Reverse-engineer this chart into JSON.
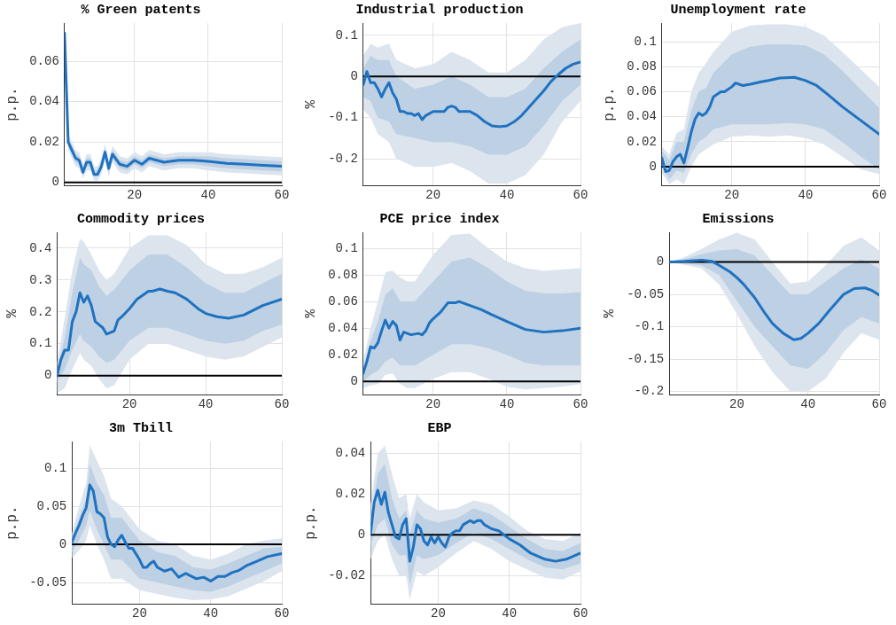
{
  "chart_data": [
    {
      "type": "line",
      "title": "% Green patents",
      "ylabel": "p.p.",
      "xlim": [
        1,
        60
      ],
      "xticks": [
        20,
        40,
        60
      ],
      "ylim": [
        -0.0015,
        0.079
      ],
      "yticks": [
        0,
        0.02,
        0.04,
        0.06
      ],
      "grid": true,
      "ref_lines": [
        {
          "axis": "y",
          "value": 0,
          "color": "#000000"
        }
      ],
      "series": [
        {
          "color": "#1f72c0",
          "x": [
            1,
            2,
            3,
            4,
            5,
            6,
            7,
            8,
            9,
            10,
            11,
            12,
            13,
            14,
            16,
            18,
            20,
            22,
            24,
            28,
            32,
            36,
            40,
            45,
            50,
            55,
            60
          ],
          "values": [
            0.074,
            0.02,
            0.016,
            0.012,
            0.011,
            0.005,
            0.01,
            0.01,
            0.004,
            0.004,
            0.008,
            0.015,
            0.007,
            0.014,
            0.009,
            0.008,
            0.011,
            0.009,
            0.012,
            0.01,
            0.011,
            0.011,
            0.0105,
            0.0095,
            0.009,
            0.0085,
            0.008
          ]
        },
        {
          "color": "#bdd0e4",
          "x": [
            1,
            2,
            3,
            4,
            5,
            6,
            7,
            8,
            9,
            10,
            11,
            12,
            13,
            14,
            16,
            18,
            20,
            22,
            24,
            28,
            32,
            36,
            40,
            45,
            50,
            55,
            60
          ],
          "values": [
            null,
            null,
            null,
            null,
            null,
            null,
            null,
            null,
            null,
            null,
            null,
            null,
            null,
            null,
            null,
            null,
            null,
            null,
            null,
            null,
            null,
            null,
            null,
            null,
            null,
            null,
            null
          ],
          "lower": [
            0.073,
            0.018,
            0.014,
            0.01,
            0.009,
            0.004,
            0.008,
            0.008,
            0.003,
            0.003,
            0.006,
            0.013,
            0.005,
            0.012,
            0.007,
            0.006,
            0.009,
            0.007,
            0.01,
            0.008,
            0.009,
            0.009,
            0.008,
            0.007,
            0.0065,
            0.006,
            0.0055
          ],
          "upper": [
            0.075,
            0.022,
            0.018,
            0.014,
            0.013,
            0.007,
            0.012,
            0.012,
            0.006,
            0.006,
            0.01,
            0.017,
            0.009,
            0.016,
            0.011,
            0.01,
            0.013,
            0.011,
            0.014,
            0.012,
            0.013,
            0.013,
            0.013,
            0.012,
            0.0115,
            0.011,
            0.0105
          ]
        },
        {
          "color": "#dce4ee",
          "x": [
            1,
            2,
            3,
            4,
            5,
            6,
            7,
            8,
            9,
            10,
            11,
            12,
            13,
            14,
            16,
            18,
            20,
            22,
            24,
            28,
            32,
            36,
            40,
            45,
            50,
            55,
            60
          ],
          "values": [
            null,
            null,
            null,
            null,
            null,
            null,
            null,
            null,
            null,
            null,
            null,
            null,
            null,
            null,
            null,
            null,
            null,
            null,
            null,
            null,
            null,
            null,
            null,
            null,
            null,
            null,
            null
          ],
          "lower": [
            0.072,
            0.016,
            0.012,
            0.008,
            0.007,
            0.002,
            0.006,
            0.006,
            0.001,
            0.001,
            0.004,
            0.011,
            0.003,
            0.01,
            0.005,
            0.004,
            0.007,
            0.005,
            0.008,
            0.006,
            0.007,
            0.007,
            0.006,
            0.005,
            0.0045,
            0.004,
            0.0035
          ],
          "upper": [
            0.076,
            0.024,
            0.02,
            0.016,
            0.015,
            0.009,
            0.014,
            0.014,
            0.008,
            0.008,
            0.012,
            0.019,
            0.011,
            0.018,
            0.013,
            0.012,
            0.015,
            0.013,
            0.016,
            0.014,
            0.015,
            0.015,
            0.015,
            0.014,
            0.0135,
            0.013,
            0.0125
          ]
        }
      ]
    },
    {
      "type": "line",
      "title": "Industrial production",
      "ylabel": "%",
      "xlim": [
        1,
        60
      ],
      "xticks": [
        20,
        40,
        60
      ],
      "ylim": [
        -0.265,
        0.13
      ],
      "yticks": [
        -0.2,
        -0.1,
        0,
        0.1
      ],
      "grid": true,
      "ref_lines": [
        {
          "axis": "y",
          "value": 0,
          "color": "#000000"
        }
      ],
      "series": [
        {
          "color": "#1f72c0",
          "x": [
            1,
            2,
            3,
            4,
            5,
            6,
            7,
            8,
            9,
            10,
            11,
            12,
            13,
            14,
            15,
            16,
            17,
            18,
            20,
            22,
            23,
            24,
            25,
            26,
            27,
            30,
            32,
            34,
            36,
            38,
            40,
            42,
            44,
            46,
            48,
            50,
            52,
            54,
            56,
            58,
            60
          ],
          "values": [
            -0.02,
            0.012,
            -0.015,
            -0.015,
            -0.03,
            -0.05,
            -0.03,
            -0.015,
            -0.04,
            -0.055,
            -0.085,
            -0.085,
            -0.09,
            -0.09,
            -0.095,
            -0.09,
            -0.105,
            -0.095,
            -0.085,
            -0.085,
            -0.085,
            -0.075,
            -0.072,
            -0.075,
            -0.085,
            -0.085,
            -0.095,
            -0.11,
            -0.12,
            -0.122,
            -0.12,
            -0.11,
            -0.095,
            -0.075,
            -0.055,
            -0.035,
            -0.012,
            0.005,
            0.02,
            0.03,
            0.035
          ]
        },
        {
          "color": "#bdd0e4",
          "x": [
            1,
            3,
            5,
            8,
            10,
            15,
            20,
            25,
            30,
            35,
            40,
            45,
            50,
            55,
            60
          ],
          "values": [
            null,
            null,
            null,
            null,
            null,
            null,
            null,
            null,
            null,
            null,
            null,
            null,
            null,
            null,
            null
          ],
          "lower": [
            -0.05,
            -0.06,
            -0.1,
            -0.11,
            -0.14,
            -0.15,
            -0.16,
            -0.16,
            -0.17,
            -0.19,
            -0.19,
            -0.17,
            -0.12,
            -0.06,
            -0.02
          ],
          "upper": [
            0.02,
            0.05,
            0.04,
            0.04,
            0.0,
            -0.03,
            -0.02,
            0.0,
            -0.02,
            -0.05,
            -0.05,
            -0.03,
            0.02,
            0.06,
            0.09
          ]
        },
        {
          "color": "#dce4ee",
          "x": [
            1,
            3,
            5,
            8,
            10,
            15,
            20,
            25,
            30,
            35,
            40,
            45,
            50,
            55,
            60
          ],
          "values": [
            null,
            null,
            null,
            null,
            null,
            null,
            null,
            null,
            null,
            null,
            null,
            null,
            null,
            null,
            null
          ],
          "lower": [
            -0.08,
            -0.1,
            -0.14,
            -0.16,
            -0.2,
            -0.22,
            -0.22,
            -0.21,
            -0.23,
            -0.26,
            -0.26,
            -0.24,
            -0.19,
            -0.11,
            -0.06
          ],
          "upper": [
            0.05,
            0.08,
            0.07,
            0.08,
            0.04,
            0.02,
            0.03,
            0.06,
            0.04,
            0.01,
            0.01,
            0.04,
            0.09,
            0.12,
            0.13
          ]
        }
      ]
    },
    {
      "type": "line",
      "title": "Unemployment rate",
      "ylabel": "p.p.",
      "xlim": [
        1,
        60
      ],
      "xticks": [
        20,
        40,
        60
      ],
      "ylim": [
        -0.015,
        0.115
      ],
      "yticks": [
        0,
        0.02,
        0.04,
        0.06,
        0.08,
        0.1
      ],
      "grid": true,
      "ref_lines": [
        {
          "axis": "y",
          "value": 0,
          "color": "#000000"
        }
      ],
      "series": [
        {
          "color": "#1f72c0",
          "x": [
            1,
            2,
            3,
            4,
            5,
            6,
            7,
            8,
            9,
            10,
            11,
            12,
            13,
            14,
            15,
            17,
            18,
            20,
            21,
            23,
            25,
            28,
            30,
            33,
            37,
            40,
            43,
            46,
            50,
            55,
            60
          ],
          "values": [
            0.007,
            -0.004,
            -0.003,
            0.004,
            0.008,
            0.01,
            0.003,
            0.015,
            0.028,
            0.038,
            0.043,
            0.041,
            0.043,
            0.048,
            0.056,
            0.06,
            0.06,
            0.064,
            0.067,
            0.065,
            0.066,
            0.068,
            0.069,
            0.071,
            0.0715,
            0.069,
            0.065,
            0.058,
            0.048,
            0.037,
            0.026
          ]
        },
        {
          "color": "#bdd0e4",
          "x": [
            1,
            3,
            5,
            7,
            9,
            11,
            13,
            15,
            20,
            25,
            30,
            35,
            40,
            45,
            50,
            55,
            60
          ],
          "values": [
            null,
            null,
            null,
            null,
            null,
            null,
            null,
            null,
            null,
            null,
            null,
            null,
            null,
            null,
            null,
            null,
            null
          ],
          "lower": [
            0.0,
            -0.01,
            -0.003,
            -0.005,
            0.01,
            0.02,
            0.024,
            0.03,
            0.034,
            0.034,
            0.034,
            0.035,
            0.034,
            0.03,
            0.02,
            0.008,
            -0.002
          ],
          "upper": [
            0.013,
            0.005,
            0.02,
            0.02,
            0.045,
            0.06,
            0.063,
            0.075,
            0.09,
            0.096,
            0.098,
            0.098,
            0.097,
            0.09,
            0.077,
            0.062,
            0.047
          ]
        },
        {
          "color": "#dce4ee",
          "x": [
            1,
            3,
            5,
            7,
            9,
            11,
            13,
            15,
            20,
            25,
            30,
            35,
            40,
            45,
            50,
            55,
            60
          ],
          "values": [
            null,
            null,
            null,
            null,
            null,
            null,
            null,
            null,
            null,
            null,
            null,
            null,
            null,
            null,
            null,
            null,
            null
          ],
          "lower": [
            -0.005,
            -0.014,
            -0.01,
            -0.014,
            0.0,
            0.01,
            0.014,
            0.018,
            0.024,
            0.025,
            0.024,
            0.025,
            0.023,
            0.018,
            0.008,
            -0.002,
            -0.006
          ],
          "upper": [
            0.016,
            0.01,
            0.027,
            0.03,
            0.06,
            0.075,
            0.083,
            0.092,
            0.108,
            0.113,
            0.114,
            0.114,
            0.112,
            0.105,
            0.092,
            0.078,
            0.064
          ]
        }
      ]
    },
    {
      "type": "line",
      "title": "Commodity prices",
      "ylabel": "%",
      "xlim": [
        1,
        60
      ],
      "xticks": [
        20,
        40,
        60
      ],
      "ylim": [
        -0.06,
        0.45
      ],
      "yticks": [
        0,
        0.1,
        0.2,
        0.3,
        0.4
      ],
      "grid": true,
      "ref_lines": [
        {
          "axis": "y",
          "value": 0,
          "color": "#000000"
        }
      ],
      "series": [
        {
          "color": "#1f72c0",
          "x": [
            1,
            2,
            3,
            4,
            5,
            6,
            7,
            8,
            9,
            10,
            11,
            12,
            13,
            14,
            15,
            16,
            17,
            18,
            20,
            22,
            25,
            26,
            28,
            30,
            32,
            35,
            38,
            40,
            43,
            46,
            50,
            55,
            60
          ],
          "values": [
            0.0,
            0.05,
            0.08,
            0.08,
            0.17,
            0.2,
            0.26,
            0.23,
            0.25,
            0.22,
            0.17,
            0.16,
            0.15,
            0.13,
            0.135,
            0.14,
            0.175,
            0.185,
            0.21,
            0.24,
            0.265,
            0.265,
            0.272,
            0.265,
            0.26,
            0.24,
            0.21,
            0.195,
            0.185,
            0.18,
            0.19,
            0.22,
            0.24
          ]
        },
        {
          "color": "#bdd0e4",
          "x": [
            1,
            3,
            5,
            7,
            8,
            10,
            12,
            14,
            16,
            20,
            25,
            30,
            35,
            40,
            45,
            50,
            55,
            60
          ],
          "values": [
            null,
            null,
            null,
            null,
            null,
            null,
            null,
            null,
            null,
            null,
            null,
            null,
            null,
            null,
            null,
            null,
            null,
            null
          ],
          "lower": [
            -0.02,
            0.02,
            0.08,
            0.13,
            0.11,
            0.09,
            0.06,
            0.04,
            0.05,
            0.11,
            0.15,
            0.15,
            0.13,
            0.11,
            0.1,
            0.11,
            0.14,
            0.16
          ],
          "upper": [
            0.02,
            0.12,
            0.26,
            0.37,
            0.35,
            0.33,
            0.28,
            0.25,
            0.27,
            0.33,
            0.38,
            0.38,
            0.34,
            0.29,
            0.26,
            0.26,
            0.29,
            0.32
          ]
        },
        {
          "color": "#dce4ee",
          "x": [
            1,
            3,
            5,
            7,
            8,
            10,
            12,
            14,
            16,
            20,
            25,
            30,
            35,
            40,
            45,
            50,
            55,
            60
          ],
          "values": [
            null,
            null,
            null,
            null,
            null,
            null,
            null,
            null,
            null,
            null,
            null,
            null,
            null,
            null,
            null,
            null,
            null,
            null
          ],
          "lower": [
            -0.055,
            -0.04,
            0.02,
            0.07,
            0.05,
            0.03,
            -0.01,
            -0.04,
            -0.03,
            0.05,
            0.1,
            0.1,
            0.08,
            0.06,
            0.05,
            0.06,
            0.09,
            0.12
          ],
          "upper": [
            0.04,
            0.18,
            0.33,
            0.43,
            0.42,
            0.38,
            0.33,
            0.3,
            0.32,
            0.4,
            0.44,
            0.44,
            0.41,
            0.35,
            0.32,
            0.32,
            0.34,
            0.37
          ]
        }
      ]
    },
    {
      "type": "line",
      "title": "PCE price index",
      "ylabel": "%",
      "xlim": [
        1,
        60
      ],
      "xticks": [
        20,
        40,
        60
      ],
      "ylim": [
        -0.01,
        0.112
      ],
      "yticks": [
        0,
        0.02,
        0.04,
        0.06,
        0.08,
        0.1
      ],
      "grid": true,
      "ref_lines": [
        {
          "axis": "y",
          "value": 0,
          "color": "#000000"
        }
      ],
      "series": [
        {
          "color": "#1f72c0",
          "x": [
            1,
            2,
            3,
            4,
            5,
            6,
            7,
            8,
            9,
            10,
            11,
            12,
            14,
            16,
            17,
            18,
            19,
            20,
            22,
            24,
            26,
            27,
            30,
            33,
            36,
            40,
            45,
            50,
            55,
            60
          ],
          "values": [
            0.006,
            0.015,
            0.026,
            0.025,
            0.029,
            0.038,
            0.046,
            0.04,
            0.045,
            0.042,
            0.031,
            0.037,
            0.035,
            0.036,
            0.035,
            0.038,
            0.044,
            0.047,
            0.052,
            0.059,
            0.059,
            0.06,
            0.057,
            0.054,
            0.05,
            0.045,
            0.039,
            0.037,
            0.038,
            0.04
          ]
        },
        {
          "color": "#bdd0e4",
          "x": [
            1,
            3,
            5,
            7,
            9,
            11,
            13,
            15,
            20,
            25,
            30,
            35,
            40,
            45,
            50,
            55,
            60
          ],
          "values": [
            null,
            null,
            null,
            null,
            null,
            null,
            null,
            null,
            null,
            null,
            null,
            null,
            null,
            null,
            null,
            null,
            null
          ],
          "lower": [
            0.0,
            0.005,
            0.008,
            0.015,
            0.018,
            0.012,
            0.012,
            0.012,
            0.02,
            0.028,
            0.028,
            0.025,
            0.02,
            0.014,
            0.012,
            0.012,
            0.012
          ],
          "upper": [
            0.01,
            0.03,
            0.045,
            0.065,
            0.07,
            0.06,
            0.06,
            0.06,
            0.075,
            0.09,
            0.093,
            0.085,
            0.075,
            0.068,
            0.066,
            0.066,
            0.067
          ]
        },
        {
          "color": "#dce4ee",
          "x": [
            1,
            3,
            5,
            7,
            9,
            11,
            13,
            15,
            20,
            25,
            30,
            35,
            40,
            45,
            50,
            55,
            60
          ],
          "values": [
            null,
            null,
            null,
            null,
            null,
            null,
            null,
            null,
            null,
            null,
            null,
            null,
            null,
            null,
            null,
            null,
            null
          ],
          "lower": [
            -0.005,
            -0.003,
            -0.002,
            0.005,
            0.006,
            -0.002,
            -0.005,
            -0.005,
            0.002,
            0.007,
            0.007,
            0.002,
            -0.004,
            -0.006,
            -0.005,
            -0.004,
            -0.002
          ],
          "upper": [
            0.015,
            0.04,
            0.06,
            0.082,
            0.083,
            0.078,
            0.075,
            0.075,
            0.095,
            0.11,
            0.111,
            0.1,
            0.09,
            0.085,
            0.083,
            0.084,
            0.085
          ]
        }
      ]
    },
    {
      "type": "line",
      "title": "Emissions",
      "ylabel": "%",
      "xlim": [
        1,
        60
      ],
      "xticks": [
        20,
        40,
        60
      ],
      "ylim": [
        -0.205,
        0.046
      ],
      "yticks": [
        -0.2,
        -0.15,
        -0.1,
        -0.05,
        0
      ],
      "grid": true,
      "ref_lines": [
        {
          "axis": "y",
          "value": 0,
          "color": "#000000"
        }
      ],
      "series": [
        {
          "color": "#1f72c0",
          "x": [
            1,
            5,
            10,
            13,
            15,
            18,
            20,
            22,
            25,
            28,
            30,
            33,
            36,
            38,
            40,
            43,
            46,
            50,
            53,
            56,
            58,
            60
          ],
          "values": [
            0,
            0.001,
            0.003,
            0.001,
            -0.005,
            -0.015,
            -0.024,
            -0.035,
            -0.055,
            -0.08,
            -0.095,
            -0.11,
            -0.12,
            -0.118,
            -0.11,
            -0.095,
            -0.075,
            -0.05,
            -0.041,
            -0.04,
            -0.044,
            -0.051
          ]
        },
        {
          "color": "#bdd0e4",
          "x": [
            1,
            5,
            10,
            15,
            20,
            25,
            30,
            35,
            40,
            45,
            50,
            55,
            60
          ],
          "values": [
            null,
            null,
            null,
            null,
            null,
            null,
            null,
            null,
            null,
            null,
            null,
            null,
            null
          ],
          "lower": [
            0,
            -0.002,
            -0.005,
            -0.02,
            -0.06,
            -0.1,
            -0.13,
            -0.16,
            -0.165,
            -0.14,
            -0.105,
            -0.085,
            -0.095
          ],
          "upper": [
            0,
            0.004,
            0.012,
            0.018,
            0.02,
            0.01,
            -0.02,
            -0.05,
            -0.05,
            -0.03,
            -0.01,
            0.004,
            -0.01
          ]
        },
        {
          "color": "#dce4ee",
          "x": [
            1,
            5,
            10,
            15,
            20,
            25,
            30,
            35,
            40,
            45,
            50,
            55,
            60
          ],
          "values": [
            null,
            null,
            null,
            null,
            null,
            null,
            null,
            null,
            null,
            null,
            null,
            null,
            null
          ],
          "lower": [
            0,
            -0.004,
            -0.01,
            -0.035,
            -0.08,
            -0.13,
            -0.17,
            -0.2,
            -0.2,
            -0.18,
            -0.14,
            -0.11,
            -0.12
          ],
          "upper": [
            0,
            0.007,
            0.02,
            0.035,
            0.045,
            0.035,
            0.0,
            -0.033,
            -0.03,
            -0.005,
            0.025,
            0.038,
            0.018
          ]
        }
      ]
    },
    {
      "type": "line",
      "title": "3m Tbill",
      "ylabel": "p.p.",
      "xlim": [
        1,
        60
      ],
      "xticks": [
        20,
        40,
        60
      ],
      "ylim": [
        -0.078,
        0.135
      ],
      "yticks": [
        -0.05,
        0,
        0.05,
        0.1
      ],
      "grid": true,
      "ref_lines": [
        {
          "axis": "y",
          "value": 0,
          "color": "#000000"
        }
      ],
      "series": [
        {
          "color": "#1f72c0",
          "x": [
            1,
            2,
            3,
            4,
            5,
            6,
            7,
            8,
            9,
            10,
            11,
            12,
            13,
            14,
            15,
            16,
            17,
            18,
            20,
            21,
            22,
            23,
            24,
            25,
            27,
            29,
            31,
            33,
            36,
            38,
            40,
            42,
            44,
            46,
            48,
            50,
            53,
            56,
            60
          ],
          "values": [
            0.003,
            0.015,
            0.025,
            0.038,
            0.048,
            0.078,
            0.07,
            0.043,
            0.04,
            0.035,
            0.01,
            0.0,
            -0.003,
            0.006,
            0.012,
            0.003,
            -0.005,
            -0.005,
            -0.02,
            -0.03,
            -0.03,
            -0.025,
            -0.022,
            -0.03,
            -0.035,
            -0.032,
            -0.043,
            -0.038,
            -0.045,
            -0.043,
            -0.048,
            -0.042,
            -0.042,
            -0.037,
            -0.034,
            -0.028,
            -0.022,
            -0.016,
            -0.012
          ]
        },
        {
          "color": "#bdd0e4",
          "x": [
            1,
            3,
            5,
            6,
            8,
            10,
            12,
            15,
            20,
            25,
            30,
            35,
            40,
            45,
            50,
            55,
            60
          ],
          "values": [
            null,
            null,
            null,
            null,
            null,
            null,
            null,
            null,
            null,
            null,
            null,
            null,
            null,
            null,
            null,
            null,
            null
          ],
          "lower": [
            -0.01,
            0.005,
            0.025,
            0.045,
            0.02,
            0.0,
            -0.02,
            -0.02,
            -0.045,
            -0.05,
            -0.055,
            -0.06,
            -0.062,
            -0.055,
            -0.045,
            -0.035,
            -0.025
          ],
          "upper": [
            0.008,
            0.035,
            0.06,
            0.105,
            0.08,
            0.065,
            0.035,
            0.035,
            0.005,
            -0.01,
            -0.015,
            -0.03,
            -0.033,
            -0.025,
            -0.015,
            -0.005,
            -0.003
          ]
        },
        {
          "color": "#dce4ee",
          "x": [
            1,
            3,
            5,
            6,
            8,
            10,
            12,
            15,
            20,
            25,
            30,
            35,
            40,
            45,
            50,
            55,
            60
          ],
          "values": [
            null,
            null,
            null,
            null,
            null,
            null,
            null,
            null,
            null,
            null,
            null,
            null,
            null,
            null,
            null,
            null,
            null
          ],
          "lower": [
            -0.018,
            -0.008,
            0.005,
            0.025,
            0.0,
            -0.02,
            -0.045,
            -0.045,
            -0.06,
            -0.065,
            -0.07,
            -0.073,
            -0.072,
            -0.068,
            -0.058,
            -0.048,
            -0.035
          ],
          "upper": [
            0.015,
            0.05,
            0.08,
            0.13,
            0.11,
            0.09,
            0.06,
            0.05,
            0.02,
            0.005,
            0.0,
            -0.015,
            -0.02,
            -0.012,
            0.0,
            0.005,
            0.008
          ]
        }
      ]
    },
    {
      "type": "line",
      "title": "EBP",
      "ylabel": "p.p.",
      "xlim": [
        1,
        60
      ],
      "xticks": [
        20,
        40,
        60
      ],
      "ylim": [
        -0.034,
        0.046
      ],
      "yticks": [
        -0.02,
        0,
        0.02,
        0.04
      ],
      "grid": true,
      "ref_lines": [
        {
          "axis": "y",
          "value": 0,
          "color": "#000000"
        }
      ],
      "series": [
        {
          "color": "#1f72c0",
          "x": [
            1,
            2,
            3,
            4,
            5,
            6,
            7,
            8,
            9,
            10,
            11,
            12,
            13,
            14,
            15,
            16,
            17,
            18,
            19,
            20,
            21,
            22,
            23,
            24,
            25,
            26,
            27,
            28,
            29,
            30,
            31,
            32,
            33,
            35,
            37,
            40,
            43,
            46,
            50,
            53,
            56,
            60
          ],
          "values": [
            0.001,
            0.016,
            0.022,
            0.015,
            0.021,
            0.011,
            0.005,
            -0.001,
            -0.002,
            0.005,
            0.008,
            -0.013,
            -0.006,
            0.005,
            0.003,
            -0.003,
            -0.005,
            -0.001,
            -0.004,
            -0.001,
            -0.004,
            -0.006,
            -0.001,
            0.001,
            0.002,
            0.002,
            0.005,
            0.006,
            0.007,
            0.006,
            0.007,
            0.007,
            0.005,
            0.003,
            0.002,
            -0.002,
            -0.005,
            -0.009,
            -0.012,
            -0.013,
            -0.012,
            -0.009
          ]
        },
        {
          "color": "#bdd0e4",
          "x": [
            1,
            3,
            5,
            7,
            9,
            11,
            12,
            14,
            16,
            20,
            25,
            30,
            35,
            40,
            45,
            50,
            55,
            60
          ],
          "values": [
            null,
            null,
            null,
            null,
            null,
            null,
            null,
            null,
            null,
            null,
            null,
            null,
            null,
            null,
            null,
            null,
            null,
            null
          ],
          "lower": [
            -0.005,
            0.005,
            0.008,
            -0.005,
            -0.01,
            -0.01,
            -0.025,
            -0.01,
            -0.012,
            -0.01,
            -0.004,
            0.001,
            -0.002,
            -0.007,
            -0.012,
            -0.016,
            -0.017,
            -0.014
          ],
          "upper": [
            0.008,
            0.03,
            0.035,
            0.018,
            0.008,
            0.012,
            0.0,
            0.012,
            0.008,
            0.006,
            0.008,
            0.013,
            0.01,
            0.004,
            -0.002,
            -0.007,
            -0.008,
            -0.004
          ]
        },
        {
          "color": "#dce4ee",
          "x": [
            1,
            3,
            5,
            7,
            9,
            11,
            12,
            14,
            16,
            20,
            25,
            30,
            35,
            40,
            45,
            50,
            55,
            60
          ],
          "values": [
            null,
            null,
            null,
            null,
            null,
            null,
            null,
            null,
            null,
            null,
            null,
            null,
            null,
            null,
            null,
            null,
            null,
            null
          ],
          "lower": [
            -0.012,
            -0.003,
            0.0,
            -0.012,
            -0.02,
            -0.02,
            -0.032,
            -0.018,
            -0.02,
            -0.016,
            -0.009,
            -0.003,
            -0.007,
            -0.013,
            -0.017,
            -0.021,
            -0.022,
            -0.018
          ],
          "upper": [
            0.015,
            0.04,
            0.044,
            0.03,
            0.018,
            0.02,
            0.008,
            0.02,
            0.016,
            0.012,
            0.013,
            0.017,
            0.015,
            0.009,
            0.002,
            -0.002,
            -0.003,
            0.001
          ]
        }
      ]
    }
  ]
}
